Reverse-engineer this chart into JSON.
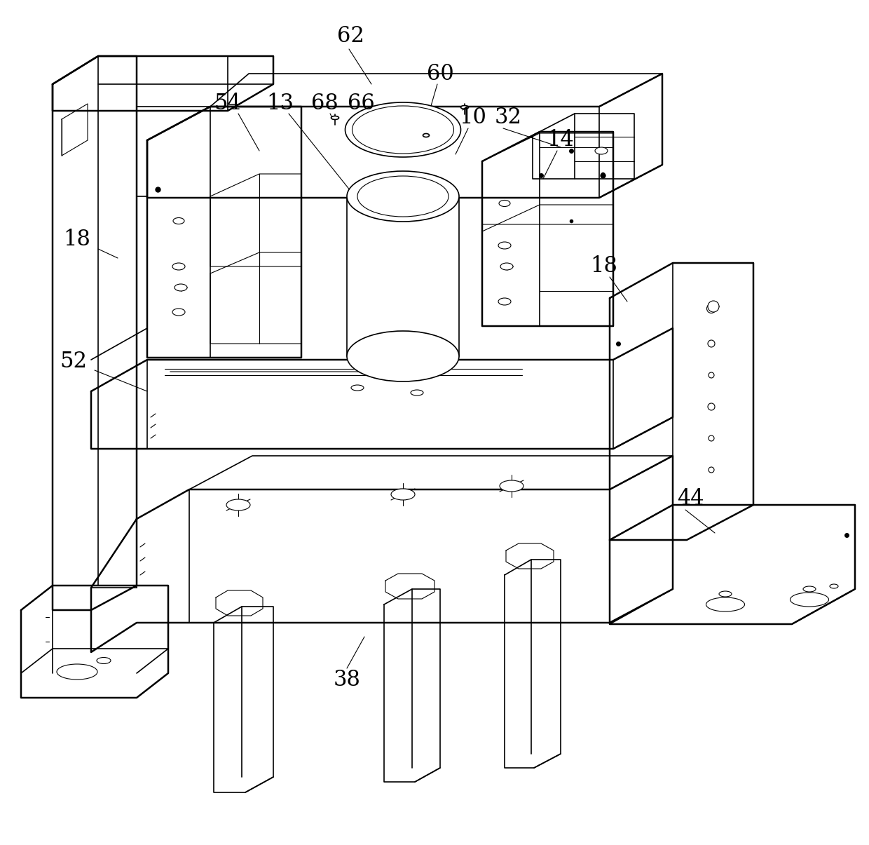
{
  "background_color": "#ffffff",
  "line_color": "#000000",
  "line_width": 1.5,
  "label_fontsize": 22,
  "fig_width": 12.4,
  "fig_height": 12.05
}
